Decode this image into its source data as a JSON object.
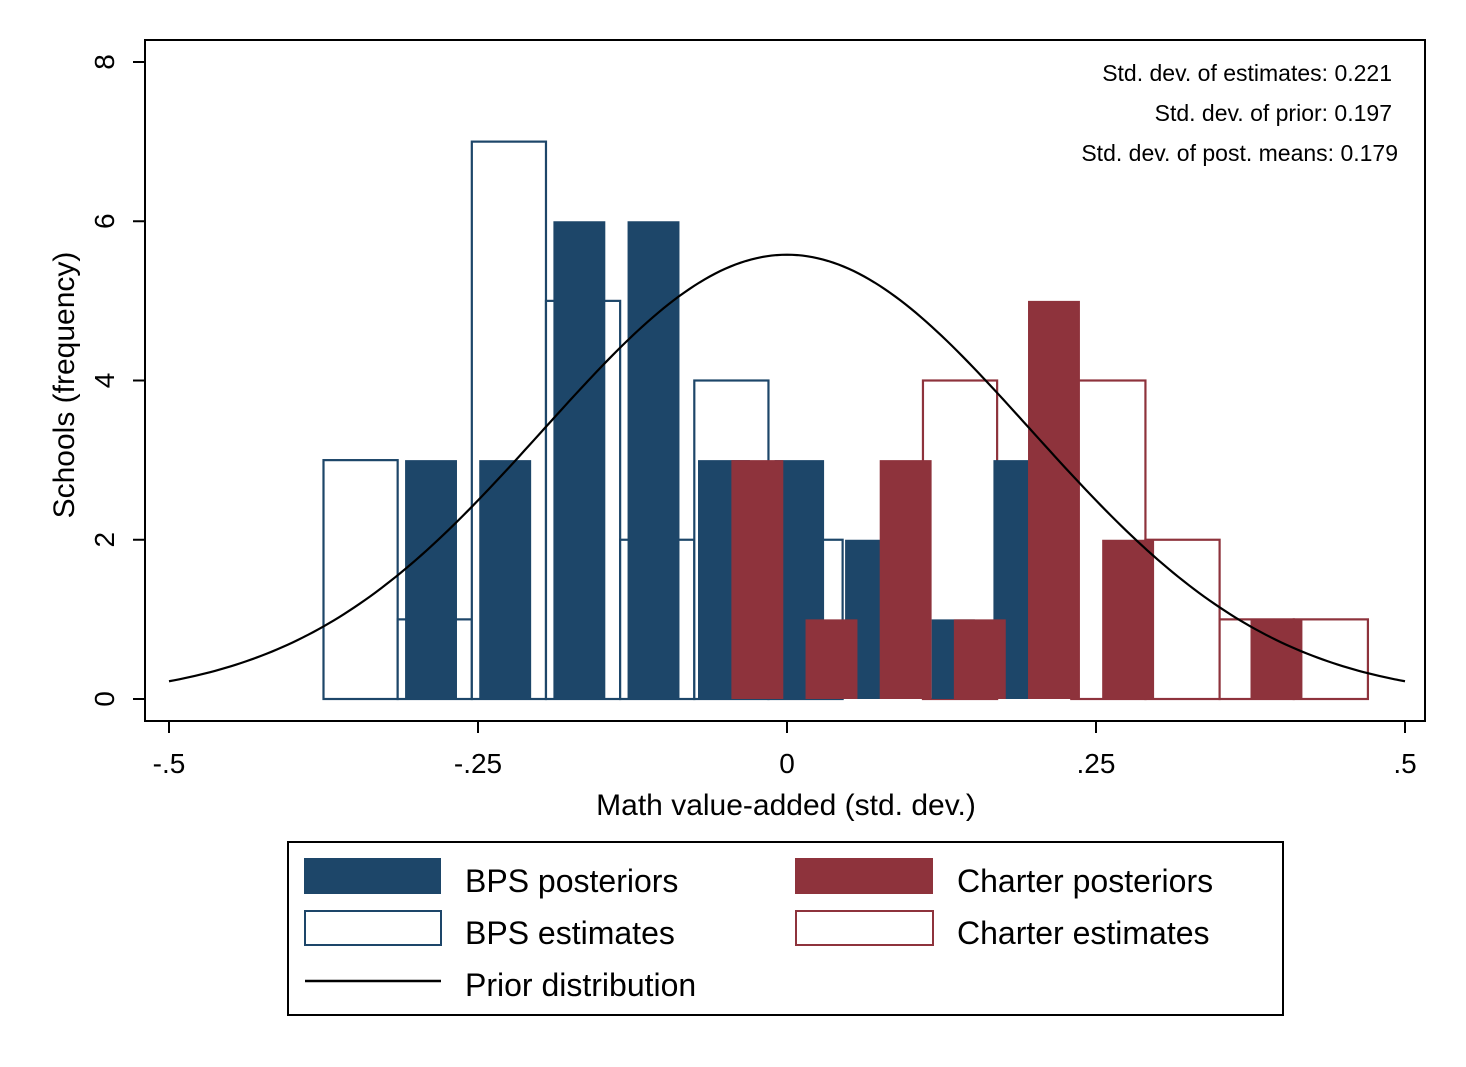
{
  "chart_data": {
    "type": "bar",
    "title": "",
    "xlabel": "Math value-added (std. dev.)",
    "ylabel": "Schools (frequency)",
    "xlim": [
      -0.5,
      0.5
    ],
    "ylim": [
      0,
      8
    ],
    "xticks": [
      -0.5,
      -0.25,
      0,
      0.25,
      0.5
    ],
    "xtick_labels": [
      "-.5",
      "-.25",
      "0",
      ".25",
      ".5"
    ],
    "yticks": [
      0,
      2,
      4,
      6,
      8
    ],
    "ytick_labels": [
      "0",
      "2",
      "4",
      "6",
      "8"
    ],
    "grid": false,
    "legend_position": "bottom",
    "annotations": [
      "Std. dev. of estimates: 0.221",
      "Std. dev. of prior: 0.197",
      "Std. dev. of post. means: 0.179"
    ],
    "series": [
      {
        "name": "BPS estimates",
        "style": "outline",
        "color": "#1d4669",
        "bins": [
          {
            "x0": -0.375,
            "x1": -0.315,
            "value": 3
          },
          {
            "x0": -0.315,
            "x1": -0.255,
            "value": 1
          },
          {
            "x0": -0.255,
            "x1": -0.195,
            "value": 7
          },
          {
            "x0": -0.195,
            "x1": -0.135,
            "value": 5
          },
          {
            "x0": -0.135,
            "x1": -0.075,
            "value": 2
          },
          {
            "x0": -0.075,
            "x1": -0.015,
            "value": 4
          },
          {
            "x0": -0.015,
            "x1": 0.045,
            "value": 2
          }
        ]
      },
      {
        "name": "BPS posteriors",
        "style": "filled",
        "color": "#1d4669",
        "bins": [
          {
            "x0": -0.309,
            "x1": -0.267,
            "value": 3
          },
          {
            "x0": -0.249,
            "x1": -0.207,
            "value": 3
          },
          {
            "x0": -0.189,
            "x1": -0.147,
            "value": 6
          },
          {
            "x0": -0.129,
            "x1": -0.087,
            "value": 6
          },
          {
            "x0": -0.072,
            "x1": -0.03,
            "value": 3
          },
          {
            "x0": -0.01,
            "x1": 0.03,
            "value": 3
          },
          {
            "x0": 0.047,
            "x1": 0.089,
            "value": 2
          },
          {
            "x0": 0.117,
            "x1": 0.152,
            "value": 1
          },
          {
            "x0": 0.167,
            "x1": 0.209,
            "value": 3
          }
        ]
      },
      {
        "name": "Charter estimates",
        "style": "outline",
        "color": "#8e333c",
        "bins": [
          {
            "x0": 0.11,
            "x1": 0.17,
            "value": 4
          },
          {
            "x0": 0.23,
            "x1": 0.29,
            "value": 4
          },
          {
            "x0": 0.29,
            "x1": 0.35,
            "value": 2
          },
          {
            "x0": 0.35,
            "x1": 0.41,
            "value": 1
          },
          {
            "x0": 0.41,
            "x1": 0.47,
            "value": 1
          }
        ]
      },
      {
        "name": "Charter posteriors",
        "style": "filled",
        "color": "#8e333c",
        "bins": [
          {
            "x0": -0.045,
            "x1": -0.003,
            "value": 3
          },
          {
            "x0": 0.015,
            "x1": 0.057,
            "value": 1
          },
          {
            "x0": 0.075,
            "x1": 0.117,
            "value": 3
          },
          {
            "x0": 0.135,
            "x1": 0.177,
            "value": 1
          },
          {
            "x0": 0.195,
            "x1": 0.237,
            "value": 5
          },
          {
            "x0": 0.255,
            "x1": 0.297,
            "value": 2
          },
          {
            "x0": 0.375,
            "x1": 0.417,
            "value": 1
          }
        ]
      },
      {
        "name": "Prior distribution",
        "style": "line",
        "color": "#000000",
        "curve": {
          "distribution": "normal",
          "mean": 0,
          "sd": 0.197,
          "peak": 5.58
        }
      }
    ],
    "legend": [
      {
        "label": "BPS posteriors",
        "style": "filled",
        "color": "#1d4669"
      },
      {
        "label": "Charter posteriors",
        "style": "filled",
        "color": "#8e333c"
      },
      {
        "label": "BPS estimates",
        "style": "outline",
        "color": "#1d4669"
      },
      {
        "label": "Charter estimates",
        "style": "outline",
        "color": "#8e333c"
      },
      {
        "label": "Prior distribution",
        "style": "line",
        "color": "#000000"
      }
    ]
  }
}
